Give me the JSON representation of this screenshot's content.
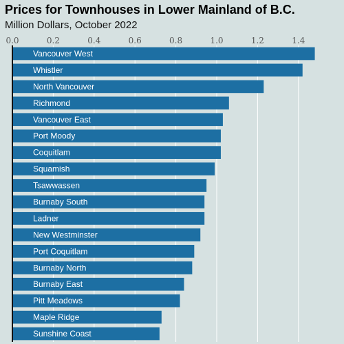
{
  "chart_data": {
    "type": "bar",
    "orientation": "horizontal",
    "title": "Prices for Townhouses in Lower Mainland of B.C.",
    "subtitle": "Million Dollars, October 2022",
    "xlabel": "",
    "ylabel": "",
    "xlim": [
      0,
      1.5
    ],
    "x_ticks": [
      "0.0",
      "0.2",
      "0.4",
      "0.6",
      "0.8",
      "1.0",
      "1.2",
      "1.4"
    ],
    "grid": true,
    "categories": [
      "Vancouver West",
      "Whistler",
      "North Vancouver",
      "Richmond",
      "Vancouver East",
      "Port Moody",
      "Coquitlam",
      "Squamish",
      "Tsawwassen",
      "Burnaby South",
      "Ladner",
      "New Westminster",
      "Port Coquitlam",
      "Burnaby North",
      "Burnaby East",
      "Pitt Meadows",
      "Maple Ridge",
      "Sunshine Coast"
    ],
    "values": [
      1.48,
      1.42,
      1.23,
      1.06,
      1.03,
      1.02,
      1.02,
      0.99,
      0.95,
      0.94,
      0.94,
      0.92,
      0.89,
      0.88,
      0.84,
      0.82,
      0.73,
      0.72
    ],
    "colors": {
      "bar": "#1d6fa3",
      "bar_label": "#ffffff",
      "background": "#d6e1e1",
      "grid": "#ffffff",
      "tick_label": "#555555",
      "axis": "#111111"
    }
  }
}
